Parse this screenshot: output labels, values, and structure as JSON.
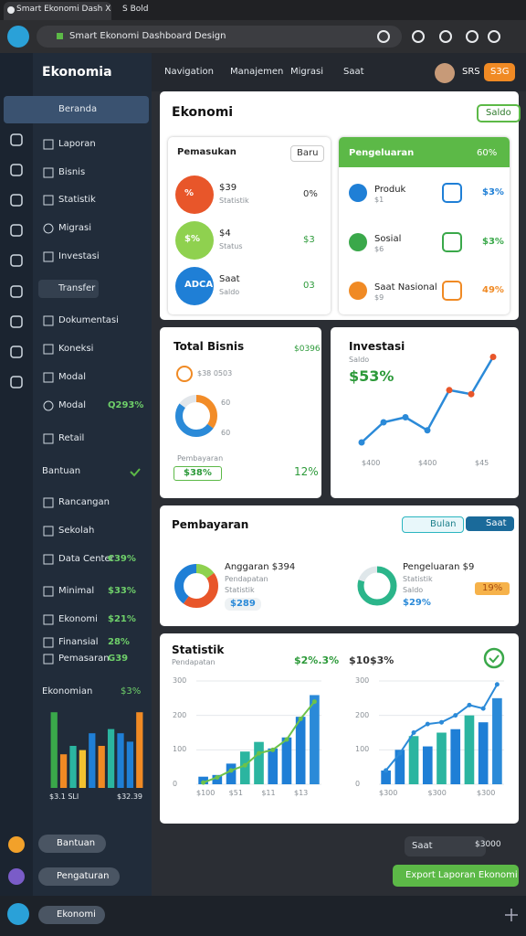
{
  "browser": {
    "tab": "Smart Ekonomi Dash X",
    "tab2": "S Bold",
    "url": "Smart Ekonomi Dashboard Design"
  },
  "header": {
    "nav": [
      "Navigation",
      "Manajemen",
      "Migrasi",
      "Saat"
    ],
    "badge": "SRS",
    "button": "S3G"
  },
  "sidebar": {
    "brand": "Ekonomia",
    "items": [
      {
        "label": "Beranda"
      },
      {
        "label": "Laporan"
      },
      {
        "label": "Bisnis"
      },
      {
        "label": "Statistik"
      },
      {
        "label": "Migrasi"
      },
      {
        "label": "Investasi"
      },
      {
        "label": "Transfer"
      },
      {
        "label": "Dokumentasi"
      },
      {
        "label": "Koneksi"
      },
      {
        "label": "Modal"
      },
      {
        "label": "Modal",
        "value": "Q293%"
      },
      {
        "label": "Retail"
      },
      {
        "label": "Bantuan"
      },
      {
        "label": "Rancangan"
      },
      {
        "label": "Sekolah"
      },
      {
        "label": "Data Center",
        "value": "€39%"
      },
      {
        "label": "Minimal",
        "value": "$33%"
      },
      {
        "label": "Ekonomi",
        "value": "$21%"
      },
      {
        "label": "Finansial",
        "value": "28%"
      },
      {
        "label": "Pemasaran",
        "value": "G39"
      }
    ],
    "chart": {
      "type": "bar",
      "title": "Ekonomian",
      "value": "$3%",
      "ylim": [
        0,
        100
      ],
      "values": [
        90,
        40,
        50,
        45,
        65,
        50,
        70,
        65,
        55,
        90
      ],
      "colors": [
        "#3aa84a",
        "#f08a24",
        "#2bb5a0",
        "#f2c230",
        "#1f7fd6",
        "#f08a24",
        "#2bb5a0",
        "#1f7fd6",
        "#1f7fd6",
        "#f08a24"
      ],
      "x_labels": [
        "$3.1 SLI",
        "$32.39"
      ]
    },
    "footer": [
      "Bantuan",
      "Pengaturan"
    ]
  },
  "card1": {
    "title": "Ekonomi",
    "button": "Saldo",
    "left": {
      "title": "Pemasukan",
      "button": "Baru",
      "rows": [
        {
          "icon": "%",
          "name": "$39",
          "sub": "Statistik",
          "value": "0%",
          "color": "#e8562a"
        },
        {
          "icon": "$%",
          "name": "$4",
          "sub": "Status",
          "value": "$3",
          "color": "#8fd14f"
        },
        {
          "icon": "ADCA",
          "name": "Saat",
          "sub": "Saldo",
          "value": "03",
          "color": "#1f7fd6"
        }
      ]
    },
    "right": {
      "title": "Pengeluaran",
      "value": "60%",
      "rows": [
        {
          "name": "Produk",
          "sub": "$1",
          "value": "$3%",
          "color": "#1f7fd6"
        },
        {
          "name": "Sosial",
          "sub": "$6",
          "value": "$3%",
          "color": "#3aa84a"
        },
        {
          "name": "Saat Nasional",
          "sub": "$9",
          "value": "49%",
          "color": "#f08a24"
        }
      ]
    }
  },
  "card2a": {
    "title": "Total Bisnis",
    "value": "$0396",
    "sub": "$38 0503",
    "donut": {
      "type": "pie",
      "values": [
        35,
        50,
        15
      ],
      "colors": [
        "#f28c28",
        "#2b8ad8",
        "#e2e6ea"
      ]
    },
    "annotations": [
      "60",
      "60"
    ],
    "footer": "Pembayaran",
    "pill": "$38%",
    "pct": "12%"
  },
  "card2b": {
    "title": "Investasi",
    "sub": "Saldo",
    "value": "$53%",
    "chart": {
      "type": "line",
      "values": [
        10,
        30,
        35,
        22,
        62,
        58,
        95
      ],
      "ylim": [
        0,
        100
      ],
      "color": "#2b8ad8",
      "marker_color": "#e8562a",
      "x_labels": [
        "$400",
        "$400",
        "$45"
      ]
    }
  },
  "card3": {
    "title": "Pembayaran",
    "buttons": [
      "Bulan",
      "Saat"
    ],
    "left": {
      "title": "Anggaran $394",
      "lines": [
        "Pendapatan",
        "Statistik"
      ],
      "value": "$289",
      "donut": {
        "type": "pie",
        "values": [
          15,
          45,
          40
        ],
        "colors": [
          "#8fd14f",
          "#e8562a",
          "#1f7fd6"
        ]
      }
    },
    "right": {
      "title": "Pengeluaran $9",
      "lines": [
        "Statistik",
        "Saldo"
      ],
      "value": "$29%",
      "tag": "19%",
      "donut": {
        "type": "pie",
        "values": [
          80,
          20
        ],
        "colors": [
          "#2bb58a",
          "#dfe7ea"
        ]
      }
    }
  },
  "card4": {
    "title": "Statistik",
    "sub": "Pendapatan",
    "value1": "$2%.3%",
    "value2": "$10$3%",
    "charts": [
      {
        "type": "bar",
        "ylim": [
          0,
          300
        ],
        "yticks": [
          0,
          100,
          200,
          300
        ],
        "values": [
          22,
          27,
          60,
          95,
          123,
          104,
          136,
          196,
          259
        ],
        "colors": [
          "#1f7fd6",
          "#1f7fd6",
          "#1f7fd6",
          "#2bb5a0",
          "#2bb5a0",
          "#1f7fd6",
          "#1f7fd6",
          "#1f7fd6",
          "#2b8ad8"
        ],
        "line": {
          "values": [
            5,
            20,
            40,
            55,
            90,
            100,
            130,
            190,
            240
          ],
          "color": "#6cc24a"
        },
        "x_labels": [
          "$100",
          "$51",
          "$11",
          "$13"
        ]
      },
      {
        "type": "bar",
        "ylim": [
          0,
          300
        ],
        "yticks": [
          0,
          100,
          200,
          300
        ],
        "values": [
          40,
          100,
          140,
          110,
          150,
          160,
          200,
          180,
          250
        ],
        "colors": [
          "#1f7fd6",
          "#1f7fd6",
          "#2bb5a0",
          "#1f7fd6",
          "#2bb5a0",
          "#1f7fd6",
          "#2bb5a0",
          "#1f7fd6",
          "#2b8ad8"
        ],
        "line": {
          "values": [
            40,
            90,
            150,
            175,
            180,
            200,
            230,
            220,
            290
          ],
          "color": "#2b8ad8"
        },
        "x_labels": [
          "$300",
          "$300",
          "$300"
        ]
      }
    ]
  },
  "footer": {
    "pill": [
      "Saat",
      "$3000"
    ],
    "button": "Export Laporan Ekonomi"
  },
  "bottom": {
    "label": "Ekonomi"
  }
}
